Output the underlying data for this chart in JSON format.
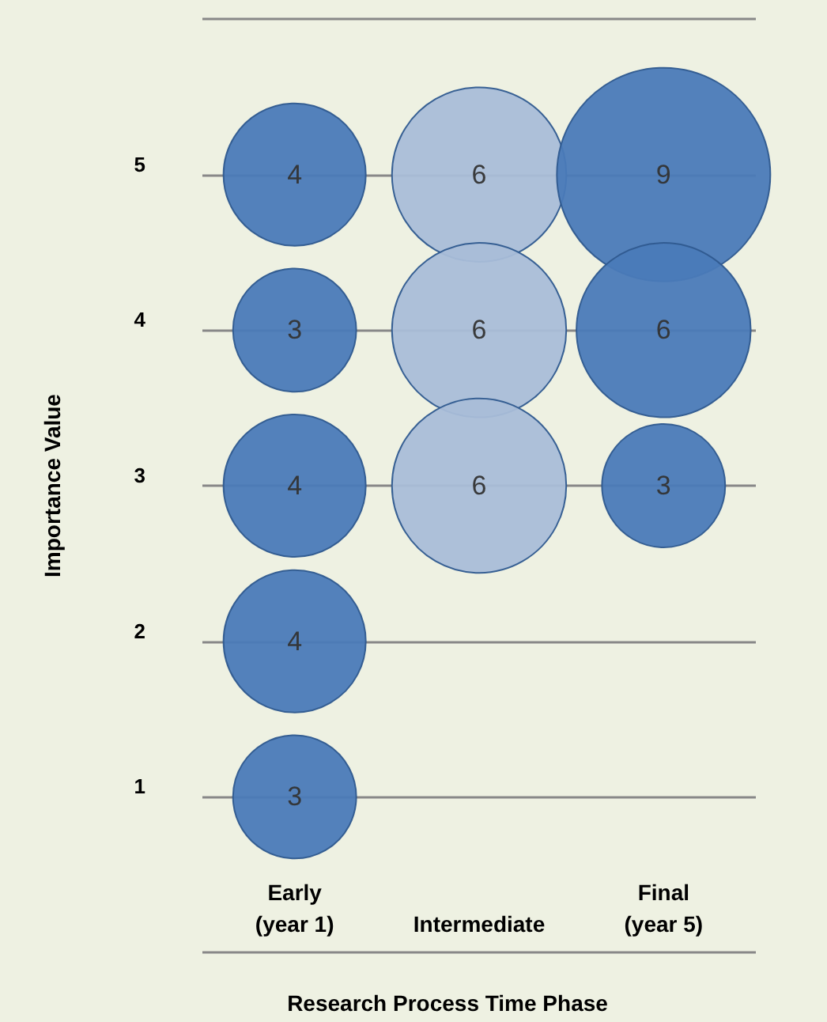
{
  "chart_data": {
    "type": "bubble",
    "xlabel": "Research Process Time Phase",
    "ylabel": "Importance Value",
    "categories": [
      "Early (year 1)",
      "Intermediate",
      "Final (year 5)"
    ],
    "series": [
      {
        "color": "#4a7ab8",
        "x": [
          "Early (year 1)",
          "Early (year 1)",
          "Early (year 1)",
          "Early (year 1)",
          "Early (year 1)"
        ],
        "values": [
          5,
          4,
          3,
          2,
          1
        ],
        "sizes": [
          4,
          3,
          4,
          4,
          3
        ],
        "value_labels": [
          "4",
          "3",
          "4",
          "4",
          "3"
        ]
      },
      {
        "color": "#a9bdd8",
        "x": [
          "Intermediate",
          "Intermediate",
          "Intermediate"
        ],
        "values": [
          5,
          4,
          3
        ],
        "sizes": [
          6,
          6,
          6
        ],
        "value_labels": [
          "6",
          "6",
          "6"
        ]
      },
      {
        "color": "#4a7ab8",
        "x": [
          "Final (year 5)",
          "Final (year 5)",
          "Final (year 5)"
        ],
        "values": [
          5,
          4,
          3
        ],
        "sizes": [
          9,
          6,
          3
        ],
        "value_labels": [
          "9",
          "6",
          "3"
        ]
      }
    ],
    "ylim": [
      0,
      6
    ],
    "yticks": [
      {
        "value": 0,
        "label": null
      },
      1,
      2,
      3,
      4,
      5,
      {
        "value": 6,
        "label": null
      }
    ],
    "grid": "y"
  }
}
